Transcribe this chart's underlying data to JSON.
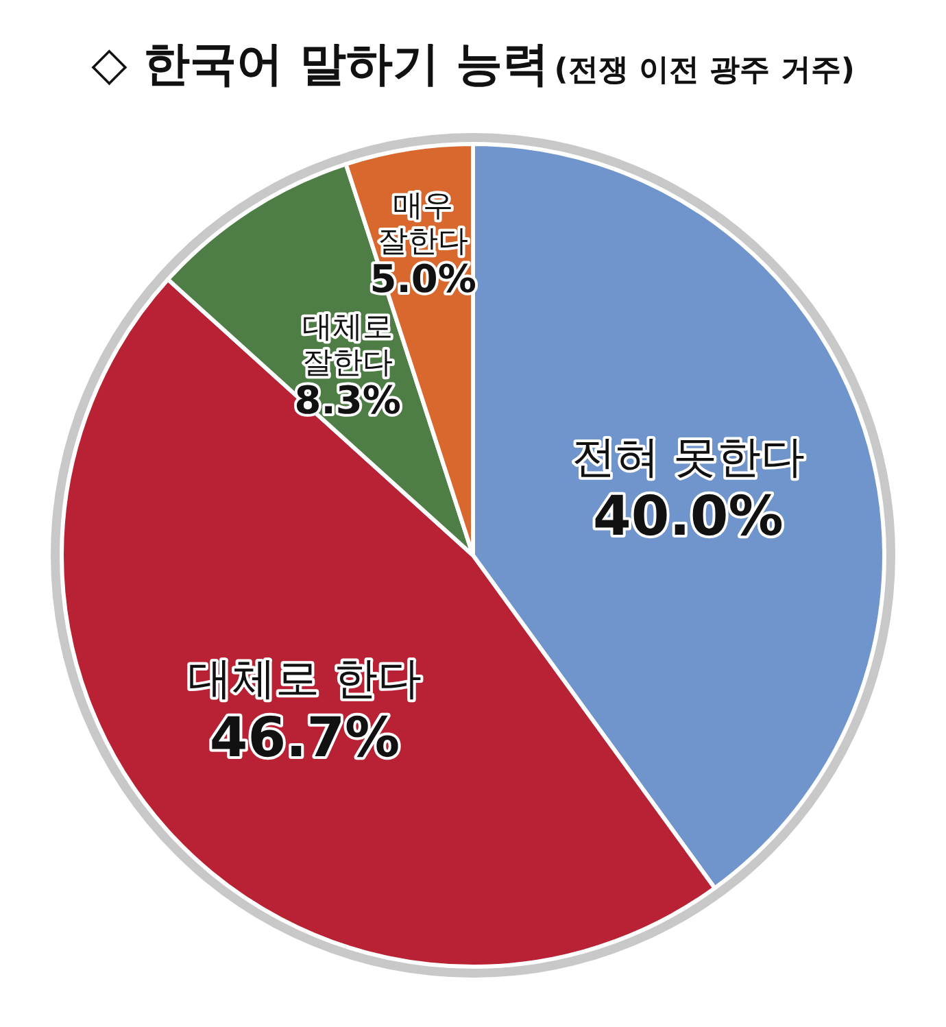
{
  "chart_data": {
    "type": "pie",
    "title": "◇ 한국어 말하기 능력",
    "subtitle": "(전쟁 이전 광주 거주)",
    "categories": [
      "전혀 못한다",
      "대체로 한다",
      "대체로 잘한다",
      "매우 잘한다"
    ],
    "values": [
      40.0,
      46.7,
      8.3,
      5.0
    ],
    "colors": [
      "#7094cc",
      "#b82234",
      "#4e7d45",
      "#d9682f"
    ],
    "value_labels": [
      "40.0%",
      "46.7%",
      "8.3%",
      "5.0%"
    ]
  }
}
